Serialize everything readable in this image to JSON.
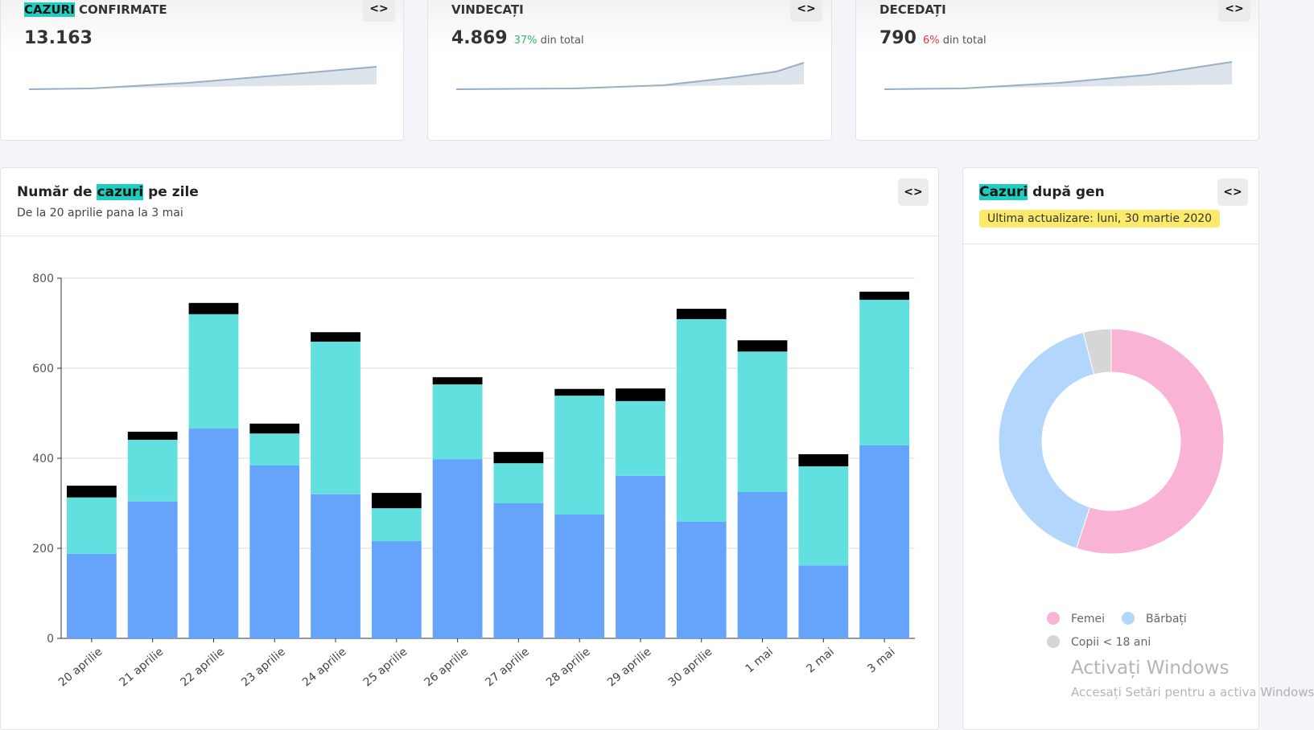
{
  "kpis": [
    {
      "title_hl": "CAZURI",
      "title_rest": "CONFIRMATE",
      "value": "13.163",
      "pct": "",
      "pct_suffix": "",
      "spark_color": "#9aaec4"
    },
    {
      "title_hl": "",
      "title_rest": "VINDECAȚI",
      "value": "4.869",
      "pct": "37%",
      "pct_suffix": "din total",
      "pct_color": "#3bb56a"
    },
    {
      "title_hl": "",
      "title_rest": "DECEDAȚI",
      "value": "790",
      "pct": "6%",
      "pct_suffix": "din total",
      "pct_color": "#e23b3b"
    }
  ],
  "code_icon": "<>",
  "bar_panel": {
    "title_pre": "Număr de",
    "title_hl": "cazuri",
    "title_post": "pe zile",
    "subtitle": "De la 20 aprilie pana la 3 mai"
  },
  "donut_panel": {
    "title_hl": "Cazuri",
    "title_post": "după gen",
    "badge": "Ultima actualizare: luni, 30 martie 2020"
  },
  "chart_data": [
    {
      "type": "bar",
      "stacked": true,
      "ylim": [
        0,
        800
      ],
      "yticks": [
        0,
        200,
        400,
        600,
        800
      ],
      "grid": true,
      "categories": [
        "20 aprilie",
        "21 aprilie",
        "22 aprilie",
        "23 aprilie",
        "24 aprilie",
        "25 aprilie",
        "26 aprilie",
        "27 aprilie",
        "28 aprilie",
        "29 aprilie",
        "30 aprilie",
        "1 mai",
        "2 mai",
        "3 mai"
      ],
      "series": [
        {
          "color": "#66a3fa",
          "values": [
            188,
            304,
            466,
            384,
            320,
            216,
            398,
            300,
            275,
            361,
            259,
            325,
            162,
            429
          ]
        },
        {
          "color": "#62e0e0",
          "values": [
            125,
            137,
            254,
            71,
            339,
            73,
            166,
            89,
            264,
            166,
            450,
            312,
            220,
            323
          ]
        },
        {
          "color": "#000000",
          "values": [
            26,
            18,
            25,
            22,
            21,
            34,
            16,
            25,
            15,
            28,
            23,
            25,
            27,
            18
          ]
        }
      ]
    },
    {
      "type": "pie",
      "donut": true,
      "slices": [
        {
          "label": "Femei",
          "value": 55,
          "color": "#f8b3d5"
        },
        {
          "label": "Bărbați",
          "value": 41,
          "color": "#b3d7fc"
        },
        {
          "label": "Copii < 18 ani",
          "value": 4,
          "color": "#d6d6d6"
        }
      ],
      "legend": "bottom"
    }
  ],
  "watermark": {
    "line1": "Activați Windows",
    "line2": "Accesați Setări pentru a activa Windows."
  }
}
